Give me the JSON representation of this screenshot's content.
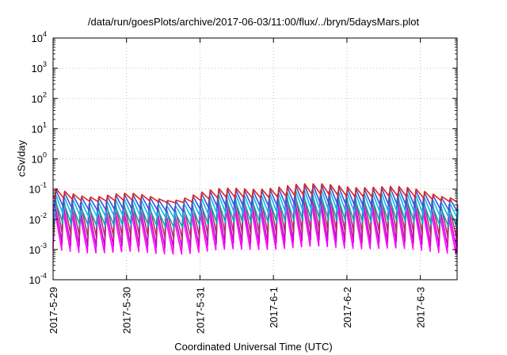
{
  "chart_data": {
    "type": "line",
    "title": "/data/run/goesPlots/archive/2017-06-03/11:00/flux/../bryn/5daysMars.plot",
    "xlabel": "Coordinated Universal Time (UTC)",
    "ylabel": "cSv/day",
    "y_scale": "log",
    "ylim": [
      0.0001,
      10000
    ],
    "xlim": [
      "2017-05-29",
      "2017-06-03 12:00"
    ],
    "grid": true,
    "legend": "none",
    "x_tick_labels": [
      "2017-5-29",
      "2017-5-30",
      "2017-5-31",
      "2017-6-1",
      "2017-6-2",
      "2017-6-3"
    ],
    "y_ticks": [
      {
        "base": "10",
        "exp": "-4"
      },
      {
        "base": "10",
        "exp": "-3"
      },
      {
        "base": "10",
        "exp": "-2"
      },
      {
        "base": "10",
        "exp": "-1"
      },
      {
        "base": "10",
        "exp": "0"
      },
      {
        "base": "10",
        "exp": "1"
      },
      {
        "base": "10",
        "exp": "2"
      },
      {
        "base": "10",
        "exp": "3"
      },
      {
        "base": "10",
        "exp": "4"
      }
    ],
    "sawtooth_period_hours": 2.8,
    "series": [
      {
        "color": "#ff00ff",
        "peak": 0.03,
        "trough": 0.0008
      },
      {
        "color": "#cc00cc",
        "peak": 0.045,
        "trough": 0.0013
      },
      {
        "color": "#b0306f",
        "peak": 0.07,
        "trough": 0.0025
      },
      {
        "color": "#00aaaa",
        "peak": 0.05,
        "trough": 0.006
      },
      {
        "color": "#00bbee",
        "peak": 0.08,
        "trough": 0.012
      },
      {
        "color": "#3355dd",
        "peak": 0.11,
        "trough": 0.02
      },
      {
        "color": "#dd2222",
        "peak": 0.12,
        "trough": 0.04
      }
    ]
  }
}
